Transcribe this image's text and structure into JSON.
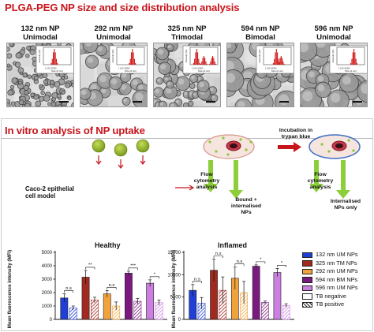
{
  "section1": {
    "title": "PLGA-PEG NP size and size distribution analysis"
  },
  "tem": [
    {
      "size": "132 nm NP",
      "mode": "Unimodal",
      "inset_x": "Size (d.nm)",
      "inset_y": "Intensity (%)",
      "ticks": [
        "1",
        "100",
        "10000"
      ]
    },
    {
      "size": "292 nm NP",
      "mode": "Unimodal",
      "inset_x": "Size (d.nm)",
      "inset_y": "Intensity (%)",
      "ticks": [
        "1",
        "100",
        "10000"
      ]
    },
    {
      "size": "325 nm NP",
      "mode": "Trimodal",
      "inset_x": "Size (d.nm)",
      "inset_y": "Intensity (%)",
      "ticks": [
        "1",
        "100",
        "10000"
      ]
    },
    {
      "size": "594 nm NP",
      "mode": "Bimodal",
      "inset_x": "Size (d.nm)",
      "inset_y": "Intensity (%)",
      "ticks": [
        "1",
        "100",
        "10000"
      ]
    },
    {
      "size": "596 nm NP",
      "mode": "Unimodal",
      "inset_x": "Size (d.nm)",
      "inset_y": "Intensity (%)",
      "ticks": [
        "1",
        "100",
        "10000"
      ]
    }
  ],
  "section2": {
    "title": "In vitro analysis of NP uptake"
  },
  "diagram": {
    "cell_model": "Caco-2 epithelial\ncell model",
    "flow1": "Flow\ncytometry\nanalysis",
    "bound": "Bound +\ninternalised\nNPs",
    "incubation": "Incubation in\ntrypan blue",
    "flow2": "Flow\ncytometry\nanalysis",
    "internalised": "Internalised\nNPs only"
  },
  "colors": {
    "tb_negative": "#ffffff",
    "c132": "#1f3fd6",
    "c325": "#a2291f",
    "c292": "#f2a23a",
    "c594": "#7a1a7e",
    "c596": "#cc7fe0",
    "title_red": "#c8151b",
    "arrow_red": "#c8151b",
    "np_green": "#7a9a1e",
    "flow_green": "#8ccf3a"
  },
  "legend": [
    {
      "label": "132 nm UM NPs",
      "color": "#1f3fd6",
      "hatch": false
    },
    {
      "label": "325 nm TM NPs",
      "color": "#a2291f",
      "hatch": false
    },
    {
      "label": "292 nm UM NPs",
      "color": "#f2a23a",
      "hatch": false
    },
    {
      "label": "594 nm BM NPs",
      "color": "#7a1a7e",
      "hatch": false
    },
    {
      "label": "596 nm UM NPs",
      "color": "#cc7fe0",
      "hatch": false
    },
    {
      "label": "TB negative",
      "color": "#ffffff",
      "hatch": false
    },
    {
      "label": "TB positive",
      "color": "#ffffff",
      "hatch": true
    }
  ],
  "chart_data": [
    {
      "type": "bar",
      "title": "Healthy",
      "ylabel": "Mean fluorescence intensity (MFI)",
      "ylim": [
        0,
        5000
      ],
      "yticks": [
        "0",
        "1000",
        "2000",
        "3000",
        "4000",
        "5000"
      ],
      "series": [
        {
          "name": "TB negative",
          "values": [
            1600,
            3150,
            1900,
            3450,
            2700
          ]
        },
        {
          "name": "TB positive",
          "values": [
            850,
            1450,
            1000,
            1350,
            1250
          ]
        }
      ],
      "errors": [
        [
          300,
          500,
          250,
          150,
          250
        ],
        [
          150,
          200,
          300,
          200,
          200
        ]
      ],
      "significance": [
        "n.s",
        "**",
        "n.s",
        "***",
        "*"
      ]
    },
    {
      "type": "bar",
      "title": "Inflamed",
      "ylabel": "Mean fluorescence intensity (MFI)",
      "ylim": [
        0,
        15000
      ],
      "yticks": [
        "0",
        "5000",
        "10000",
        "15000"
      ],
      "series": [
        {
          "name": "TB negative",
          "values": [
            6500,
            11000,
            9200,
            11900,
            10500
          ]
        },
        {
          "name": "TB positive",
          "values": [
            3600,
            6500,
            6000,
            3800,
            3100
          ]
        }
      ],
      "errors": [
        [
          1300,
          2500,
          2500,
          300,
          900
        ],
        [
          1300,
          3000,
          2500,
          300,
          400
        ]
      ],
      "significance": [
        "n.s",
        "n.s",
        "n.s",
        "*",
        "*"
      ]
    }
  ]
}
